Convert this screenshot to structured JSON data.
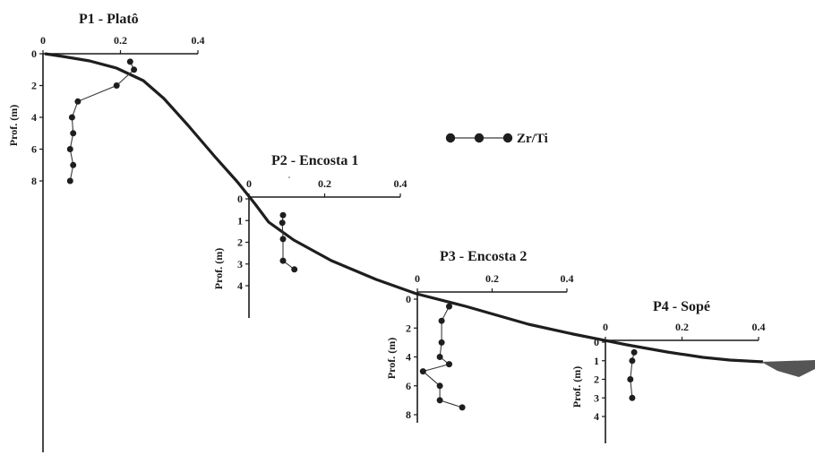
{
  "chart_data": {
    "type": "line",
    "legend": {
      "label": "Zr/Ti",
      "position": "top-center"
    },
    "x_ticks": [
      "0",
      "0.2",
      "0.4"
    ],
    "xlim": [
      0,
      0.4
    ],
    "line_color": "#3a3a3a",
    "terrain_color": "#1e1e1e",
    "water_color": "#555555",
    "panels": [
      {
        "title": "P1 - Platô",
        "ylabel": "Prof. (m)",
        "y_ticks": [
          "0",
          "2",
          "4",
          "6",
          "8"
        ],
        "ylim": [
          0,
          8
        ],
        "series": [
          {
            "x": [
              0.225,
              0.235,
              0.19,
              0.09,
              0.075,
              0.078,
              0.07,
              0.078,
              0.07
            ],
            "y": [
              0.5,
              1,
              2,
              3,
              4,
              5,
              6,
              7,
              8
            ]
          }
        ]
      },
      {
        "title": "P2 - Encosta 1",
        "ylabel": "Prof. (m)",
        "y_ticks": [
          "0",
          "1",
          "2",
          "3",
          "4"
        ],
        "ylim": [
          0,
          4
        ],
        "series": [
          {
            "x": [
              0.09,
              0.088,
              0.09,
              0.09,
              0.12
            ],
            "y": [
              0.75,
              1.1,
              1.85,
              2.85,
              3.25
            ]
          }
        ]
      },
      {
        "title": "P3 - Encosta 2",
        "ylabel": "Prof. (m)",
        "y_ticks": [
          "0",
          "2",
          "4",
          "6",
          "8"
        ],
        "ylim": [
          0,
          8
        ],
        "series": [
          {
            "x": [
              0.085,
              0.065,
              0.065,
              0.06,
              0.085,
              0.015,
              0.06,
              0.06,
              0.12
            ],
            "y": [
              0.5,
              1.5,
              3,
              4,
              4.5,
              5,
              6,
              7,
              7.5
            ]
          }
        ]
      },
      {
        "title": "P4 - Sopé",
        "ylabel": "Prof. (m)",
        "y_ticks": [
          "0",
          "1",
          "2",
          "3",
          "4"
        ],
        "ylim": [
          0,
          4
        ],
        "series": [
          {
            "x": [
              0.075,
              0.07,
              0.065,
              0.07
            ],
            "y": [
              0.55,
              1,
              2,
              3
            ]
          }
        ]
      }
    ]
  }
}
